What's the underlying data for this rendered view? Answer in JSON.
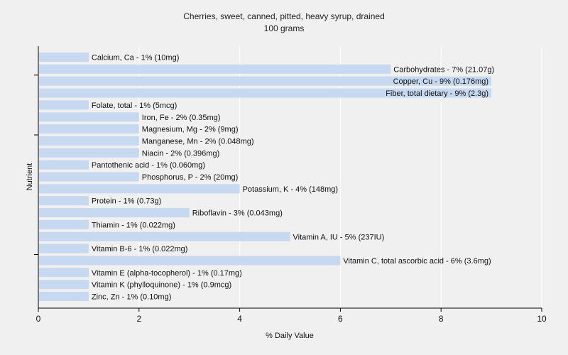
{
  "chart_data": {
    "type": "bar",
    "orientation": "horizontal",
    "title": "Cherries, sweet, canned, pitted, heavy syrup, drained",
    "subtitle": "100 grams",
    "xlabel": "% Daily Value",
    "ylabel": "Nutrient",
    "xlim": [
      0,
      10
    ],
    "xticks": [
      0,
      2,
      4,
      6,
      8,
      10
    ],
    "grid": true,
    "bar_color": "#c6d9f1",
    "categories": [
      "Calcium, Ca",
      "Carbohydrates",
      "Copper, Cu",
      "Fiber, total dietary",
      "Folate, total",
      "Iron, Fe",
      "Magnesium, Mg",
      "Manganese, Mn",
      "Niacin",
      "Pantothenic acid",
      "Phosphorus, P",
      "Potassium, K",
      "Protein",
      "Riboflavin",
      "Thiamin",
      "Vitamin A, IU",
      "Vitamin B-6",
      "Vitamin C, total ascorbic acid",
      "Vitamin E (alpha-tocopherol)",
      "Vitamin K (phylloquinone)",
      "Zinc, Zn"
    ],
    "values": [
      1,
      7,
      9,
      9,
      1,
      2,
      2,
      2,
      2,
      1,
      2,
      4,
      1,
      3,
      1,
      5,
      1,
      6,
      1,
      1,
      1
    ],
    "labels": [
      "Calcium, Ca - 1% (10mg)",
      "Carbohydrates - 7% (21.07g)",
      "Copper, Cu - 9% (0.176mg)",
      "Fiber, total dietary - 9% (2.3g)",
      "Folate, total - 1% (5mcg)",
      "Iron, Fe - 2% (0.35mg)",
      "Magnesium, Mg - 2% (9mg)",
      "Manganese, Mn - 2% (0.048mg)",
      "Niacin - 2% (0.396mg)",
      "Pantothenic acid - 1% (0.060mg)",
      "Phosphorus, P - 2% (20mg)",
      "Potassium, K - 4% (148mg)",
      "Protein - 1% (0.73g)",
      "Riboflavin - 3% (0.043mg)",
      "Thiamin - 1% (0.022mg)",
      "Vitamin A, IU - 5% (237IU)",
      "Vitamin B-6 - 1% (0.022mg)",
      "Vitamin C, total ascorbic acid - 6% (3.6mg)",
      "Vitamin E (alpha-tocopherol) - 1% (0.17mg)",
      "Vitamin K (phylloquinone) - 1% (0.9mcg)",
      "Zinc, Zn - 1% (0.10mg)"
    ]
  }
}
